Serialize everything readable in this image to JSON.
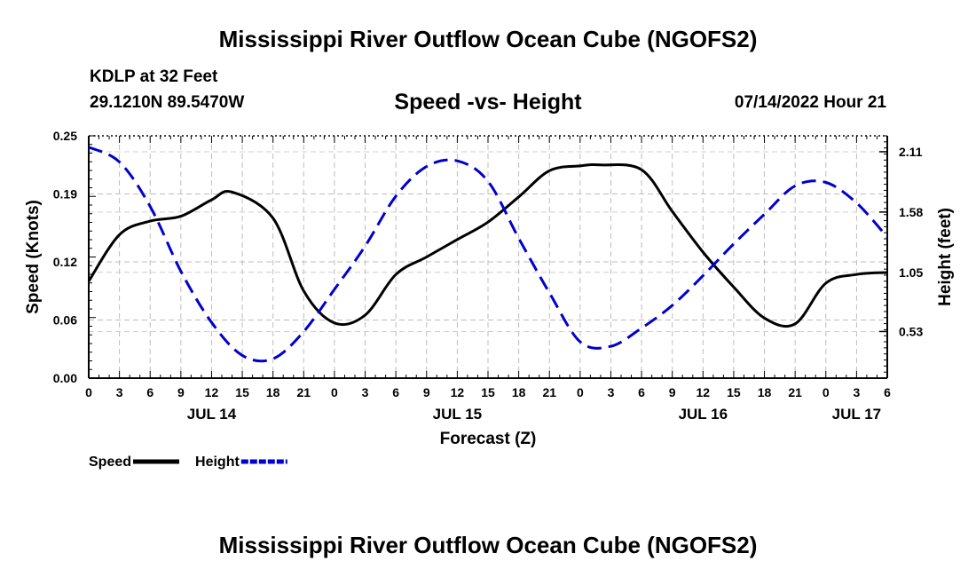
{
  "header": {
    "title": "Mississippi River Outflow Ocean Cube (NGOFS2)",
    "station": "KDLP at 32 Feet",
    "coordinates": "29.1210N  89.5470W",
    "subtitle": "Speed -vs- Height",
    "datetime": "07/14/2022 Hour 21"
  },
  "footer": {
    "title": "Mississippi River Outflow Ocean Cube (NGOFS2)"
  },
  "chart_data": {
    "type": "line",
    "title": "Speed -vs- Height",
    "xlabel": "Forecast (Z)",
    "ylabel": "Speed (Knots)",
    "y2label": "Height (feet)",
    "xlim": [
      0,
      78
    ],
    "ylim": [
      0,
      0.25
    ],
    "y2lim": [
      0.12,
      2.25
    ],
    "x_ticks": [
      0,
      3,
      6,
      9,
      12,
      15,
      18,
      21,
      24,
      27,
      30,
      33,
      36,
      39,
      42,
      45,
      48,
      51,
      54,
      57,
      60,
      63,
      66,
      69,
      72,
      75,
      78
    ],
    "x_tick_labels": [
      "0",
      "3",
      "6",
      "9",
      "12",
      "15",
      "18",
      "21",
      "0",
      "3",
      "6",
      "9",
      "12",
      "15",
      "18",
      "21",
      "0",
      "3",
      "6",
      "9",
      "12",
      "15",
      "18",
      "21",
      "0",
      "3",
      "6"
    ],
    "date_labels": [
      {
        "x": 12,
        "label": "JUL 14"
      },
      {
        "x": 36,
        "label": "JUL 15"
      },
      {
        "x": 60,
        "label": "JUL 16"
      },
      {
        "x": 75,
        "label": "JUL 17"
      }
    ],
    "y_ticks": [
      0.0,
      0.06,
      0.12,
      0.19,
      0.25
    ],
    "y_tick_labels": [
      "0.00",
      "0.06",
      "0.12",
      "0.19",
      "0.25"
    ],
    "y2_ticks": [
      0.53,
      1.05,
      1.58,
      2.11
    ],
    "y2_tick_labels": [
      "0.53",
      "1.05",
      "1.58",
      "2.11"
    ],
    "grid": true,
    "legend_position": "bottom-left",
    "series": [
      {
        "name": "Speed",
        "axis": "left",
        "color": "#000000",
        "style": "solid",
        "x": [
          0,
          3,
          6,
          9,
          12,
          14,
          18,
          21,
          24,
          27,
          30,
          33,
          36,
          39,
          42,
          45,
          48,
          50,
          54,
          57,
          60,
          63,
          66,
          69,
          72,
          75,
          78
        ],
        "y": [
          0.1,
          0.148,
          0.162,
          0.167,
          0.184,
          0.192,
          0.165,
          0.09,
          0.057,
          0.065,
          0.107,
          0.125,
          0.143,
          0.161,
          0.187,
          0.214,
          0.219,
          0.22,
          0.215,
          0.172,
          0.13,
          0.094,
          0.062,
          0.056,
          0.098,
          0.107,
          0.109
        ]
      },
      {
        "name": "Height",
        "axis": "right",
        "color": "#0000cc",
        "style": "dashed",
        "x": [
          0,
          3,
          6,
          9,
          12,
          15,
          18,
          21,
          24,
          27,
          30,
          33,
          36,
          39,
          42,
          45,
          48,
          51,
          54,
          57,
          60,
          63,
          66,
          69,
          72,
          75,
          78
        ],
        "y": [
          2.15,
          2.02,
          1.63,
          1.06,
          0.61,
          0.32,
          0.29,
          0.53,
          0.9,
          1.28,
          1.72,
          1.98,
          2.03,
          1.85,
          1.35,
          0.87,
          0.44,
          0.4,
          0.56,
          0.76,
          1.02,
          1.3,
          1.56,
          1.81,
          1.84,
          1.66,
          1.36
        ]
      }
    ]
  }
}
